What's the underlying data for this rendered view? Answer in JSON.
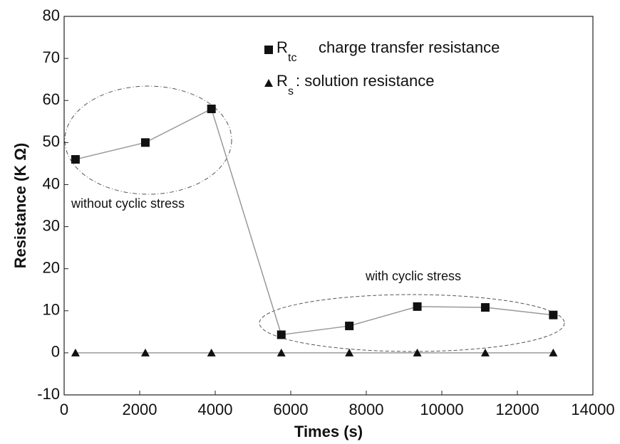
{
  "chart_data": {
    "type": "line",
    "xlabel": "Times (s)",
    "ylabel": "Resistance (K Ω)",
    "x": [
      300,
      2150,
      3900,
      5750,
      7550,
      9350,
      11150,
      12950
    ],
    "series": [
      {
        "name": "R",
        "subscript": "tc",
        "description": "charge transfer resistance",
        "color": "#999999",
        "marker": "square",
        "values": [
          46,
          50,
          58,
          4.3,
          6.4,
          11,
          10.8,
          9
        ]
      },
      {
        "name": "R",
        "subscript": "s",
        "description": ": solution resistance",
        "color": "#999999",
        "marker": "triangle",
        "values": [
          0,
          0,
          0,
          0,
          0,
          0,
          0,
          0
        ]
      }
    ],
    "annotations": [
      "without cyclic stress",
      "with cyclic stress"
    ],
    "xlim": [
      0,
      14000
    ],
    "xticks": [
      0,
      2000,
      4000,
      6000,
      8000,
      10000,
      12000,
      14000
    ],
    "ylim": [
      -10,
      80
    ],
    "yticks": [
      -10,
      0,
      10,
      20,
      30,
      40,
      50,
      60,
      70,
      80
    ],
    "grid": false
  }
}
